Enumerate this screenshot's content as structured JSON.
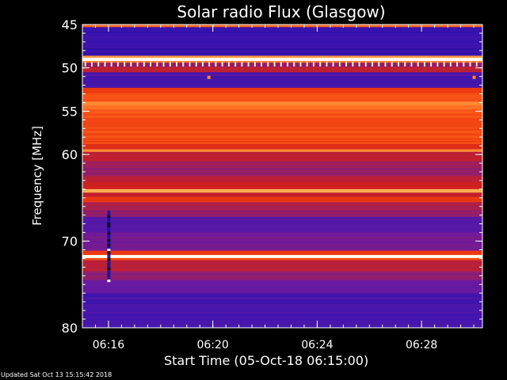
{
  "chart_data": {
    "type": "heatmap",
    "title": "Solar radio Flux (Glasgow)",
    "ylabel": "Frequency [MHz]",
    "xlabel": "Start Time (05-Oct-18 06:15:00)",
    "y_axis": {
      "range": [
        45,
        80
      ],
      "inverted": true,
      "major_ticks": [
        "45",
        "50",
        "55",
        "60",
        "70",
        "80"
      ],
      "minor_tick_step": 1
    },
    "x_axis": {
      "range": [
        "06:15:00",
        "06:30:20"
      ],
      "major_ticks": [
        "06:16",
        "06:20",
        "06:24",
        "06:28"
      ],
      "minor_tick_step_minutes": 0.5
    },
    "colormap": [
      "#1a0c90",
      "#3a14b0",
      "#6a1aa0",
      "#a0205a",
      "#cc2020",
      "#ee3a10",
      "#ff6a20",
      "#ffae50",
      "#ffe8a0",
      "#ffffff"
    ],
    "frequency_bands": [
      {
        "f": [
          45.0,
          45.3
        ],
        "level": 0.65
      },
      {
        "f": [
          45.3,
          48.6
        ],
        "level": 0.1
      },
      {
        "f": [
          48.6,
          48.85
        ],
        "level": 0.75
      },
      {
        "f": [
          48.85,
          49.2
        ],
        "level": 1.0
      },
      {
        "f": [
          49.2,
          49.4
        ],
        "level": 0.7
      },
      {
        "f": [
          49.4,
          49.9
        ],
        "level": 0.3
      },
      {
        "f": [
          49.9,
          50.5
        ],
        "level": 0.42
      },
      {
        "f": [
          50.5,
          52.3
        ],
        "level": 0.15
      },
      {
        "f": [
          52.3,
          52.9
        ],
        "level": 0.55
      },
      {
        "f": [
          52.9,
          53.9
        ],
        "level": 0.6
      },
      {
        "f": [
          53.9,
          54.3
        ],
        "level": 0.72
      },
      {
        "f": [
          54.3,
          54.8
        ],
        "level": 0.68
      },
      {
        "f": [
          54.8,
          55.8
        ],
        "level": 0.62
      },
      {
        "f": [
          55.8,
          56.8
        ],
        "level": 0.58
      },
      {
        "f": [
          56.8,
          58.8
        ],
        "level": 0.6
      },
      {
        "f": [
          58.8,
          59.4
        ],
        "level": 0.5
      },
      {
        "f": [
          59.4,
          59.7
        ],
        "level": 0.72
      },
      {
        "f": [
          59.7,
          60.8
        ],
        "level": 0.4
      },
      {
        "f": [
          60.8,
          62.5
        ],
        "level": 0.32
      },
      {
        "f": [
          62.5,
          63.2
        ],
        "level": 0.4
      },
      {
        "f": [
          63.2,
          64.0
        ],
        "level": 0.45
      },
      {
        "f": [
          64.0,
          64.4
        ],
        "level": 0.78
      },
      {
        "f": [
          64.4,
          64.9
        ],
        "level": 0.42
      },
      {
        "f": [
          64.9,
          65.5
        ],
        "level": 0.55
      },
      {
        "f": [
          65.5,
          66.4
        ],
        "level": 0.36
      },
      {
        "f": [
          66.4,
          67.2
        ],
        "level": 0.3
      },
      {
        "f": [
          67.2,
          69.0
        ],
        "level": 0.18
      },
      {
        "f": [
          69.0,
          71.1
        ],
        "level": 0.24
      },
      {
        "f": [
          71.1,
          71.6
        ],
        "level": 0.55
      },
      {
        "f": [
          71.6,
          71.95
        ],
        "level": 0.98
      },
      {
        "f": [
          71.95,
          72.2
        ],
        "level": 0.6
      },
      {
        "f": [
          72.2,
          73.5
        ],
        "level": 0.4
      },
      {
        "f": [
          73.5,
          74.5
        ],
        "level": 0.3
      },
      {
        "f": [
          74.5,
          76.0
        ],
        "level": 0.22
      },
      {
        "f": [
          76.0,
          80.0
        ],
        "level": 0.14
      }
    ],
    "interference_burst": {
      "time": "06:16:00",
      "f": [
        66.5,
        74.6
      ]
    },
    "hot_pixels": [
      {
        "time": "06:19:50",
        "f": 51.1
      },
      {
        "time": "06:30:00",
        "f": 51.1
      }
    ]
  },
  "footer": {
    "updated_text": "Updated Sat Oct 13 15:15:42 2018"
  }
}
